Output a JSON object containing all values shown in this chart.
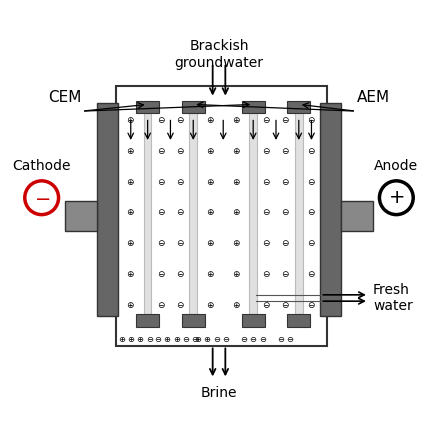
{
  "bg_color": "#ffffff",
  "dark_gray": "#666666",
  "mid_gray": "#999999",
  "light_gray": "#bbbbbb",
  "lighter_gray": "#e0e0e0",
  "elec_gray": "#888888",
  "outline": "#333333",
  "red_color": "#cc0000",
  "labels": {
    "brackish": "Brackish\ngroundwater",
    "cem": "CEM",
    "aem": "AEM",
    "cathode": "Cathode",
    "anode": "Anode",
    "fresh": "Fresh\nwater",
    "brine": "Brine"
  },
  "figsize": [
    4.38,
    4.25
  ],
  "dpi": 100
}
